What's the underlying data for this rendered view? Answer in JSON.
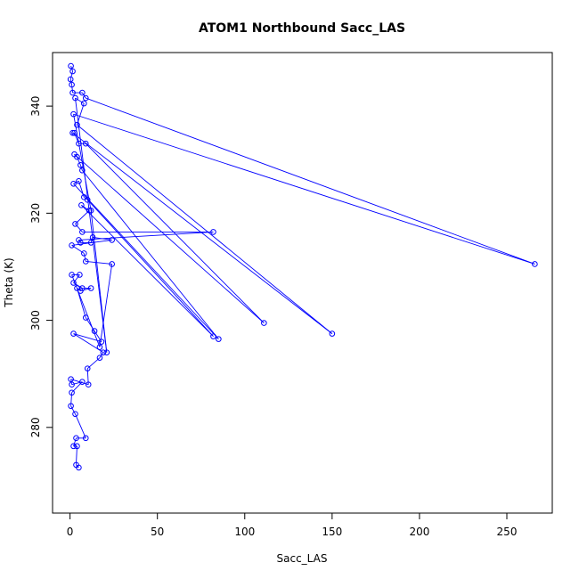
{
  "chart_data": {
    "type": "line",
    "title": "ATOM1 Northbound Sacc_LAS",
    "xlabel": "Sacc_LAS",
    "ylabel": "Theta (K)",
    "xlim": [
      -10,
      276
    ],
    "ylim": [
      264,
      350
    ],
    "xticks": [
      0,
      50,
      100,
      150,
      200,
      250
    ],
    "yticks": [
      280,
      300,
      320,
      340
    ],
    "grid": false,
    "series": [
      {
        "color": "#0000ff",
        "marker": "open-circle",
        "points": [
          [
            0.5,
            347.5
          ],
          [
            1.5,
            346.5
          ],
          [
            0.3,
            345
          ],
          [
            1,
            344
          ],
          [
            1.5,
            342.5
          ],
          [
            7,
            342.5
          ],
          [
            9,
            341.5
          ],
          [
            266,
            310.5
          ],
          [
            2,
            338.5
          ],
          [
            12,
            320.5
          ],
          [
            21,
            294
          ],
          [
            3,
            341.5
          ],
          [
            8,
            340.5
          ],
          [
            4,
            336.5
          ],
          [
            150,
            297.5
          ],
          [
            1.5,
            335
          ],
          [
            2.5,
            335
          ],
          [
            5,
            333
          ],
          [
            9,
            333
          ],
          [
            111,
            299.5
          ],
          [
            2.5,
            331
          ],
          [
            4,
            330.5
          ],
          [
            6,
            329
          ],
          [
            7,
            328
          ],
          [
            85,
            296.5
          ],
          [
            2,
            325.5
          ],
          [
            5,
            326
          ],
          [
            8,
            323
          ],
          [
            10,
            322.5
          ],
          [
            82,
            297
          ],
          [
            6.5,
            321.5
          ],
          [
            11,
            320.5
          ],
          [
            3,
            318
          ],
          [
            7,
            316.5
          ],
          [
            82,
            316.5
          ],
          [
            5,
            315
          ],
          [
            6,
            314.5
          ],
          [
            12,
            314.5
          ],
          [
            13,
            315.5
          ],
          [
            24,
            315
          ],
          [
            1,
            314
          ],
          [
            8,
            312.5
          ],
          [
            9,
            311
          ],
          [
            24,
            310.5
          ],
          [
            17,
            295
          ],
          [
            1,
            308.5
          ],
          [
            5.5,
            308.5
          ],
          [
            2,
            307
          ],
          [
            7,
            306
          ],
          [
            12,
            306
          ],
          [
            6,
            305.5
          ],
          [
            4,
            306
          ],
          [
            9,
            300.5
          ],
          [
            14,
            298
          ],
          [
            18,
            296
          ],
          [
            2,
            297.5
          ],
          [
            19,
            294
          ],
          [
            17,
            293
          ],
          [
            10,
            291
          ],
          [
            10.5,
            288
          ],
          [
            0.5,
            289
          ],
          [
            1,
            288
          ],
          [
            7,
            288.5
          ],
          [
            1,
            286.5
          ],
          [
            0.5,
            284
          ],
          [
            3,
            282.5
          ],
          [
            9,
            278
          ],
          [
            3.5,
            278
          ],
          [
            2,
            276.5
          ],
          [
            4,
            276.5
          ],
          [
            3.5,
            273
          ],
          [
            5,
            272.5
          ]
        ]
      }
    ]
  }
}
